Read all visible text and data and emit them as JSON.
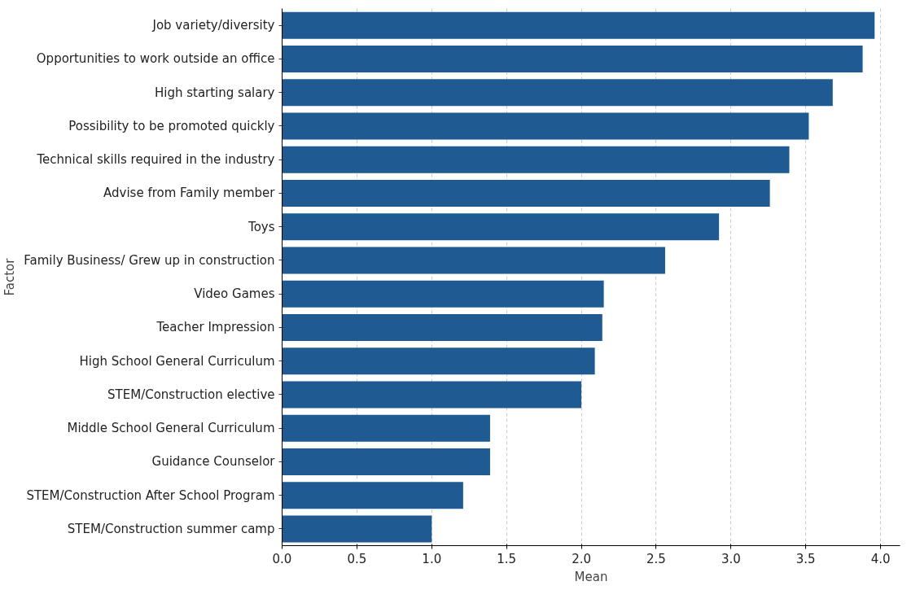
{
  "chart_data": {
    "type": "bar",
    "orientation": "horizontal",
    "xlabel": "Mean",
    "ylabel": "Factor",
    "categories": [
      "Job variety/diversity",
      "Opportunities to work outside an office",
      "High starting salary",
      "Possibility to be promoted quickly",
      "Technical skills required in the industry",
      "Advise from Family member",
      "Toys",
      "Family Business/ Grew up in construction",
      "Video Games",
      "Teacher Impression",
      "High School General Curriculum",
      "STEM/Construction elective",
      "Middle School General Curriculum",
      "Guidance Counselor",
      "STEM/Construction After School Program",
      "STEM/Construction summer camp"
    ],
    "values": [
      3.96,
      3.88,
      3.68,
      3.52,
      3.39,
      3.26,
      2.92,
      2.56,
      2.15,
      2.14,
      2.09,
      2.0,
      1.39,
      1.39,
      1.21,
      1.0
    ],
    "color": "#1f5b92",
    "xlim": [
      0,
      4.13
    ],
    "xticks": [
      {
        "value": 0,
        "label": "0.0"
      },
      {
        "value": 0.5,
        "label": "0.5"
      },
      {
        "value": 1,
        "label": "1.0"
      },
      {
        "value": 1.5,
        "label": "1.5"
      },
      {
        "value": 2,
        "label": "2.0"
      },
      {
        "value": 2.5,
        "label": "2.5"
      },
      {
        "value": 3,
        "label": "3.0"
      },
      {
        "value": 3.5,
        "label": "3.5"
      },
      {
        "value": 4,
        "label": "4.0"
      }
    ],
    "grid": "x"
  }
}
